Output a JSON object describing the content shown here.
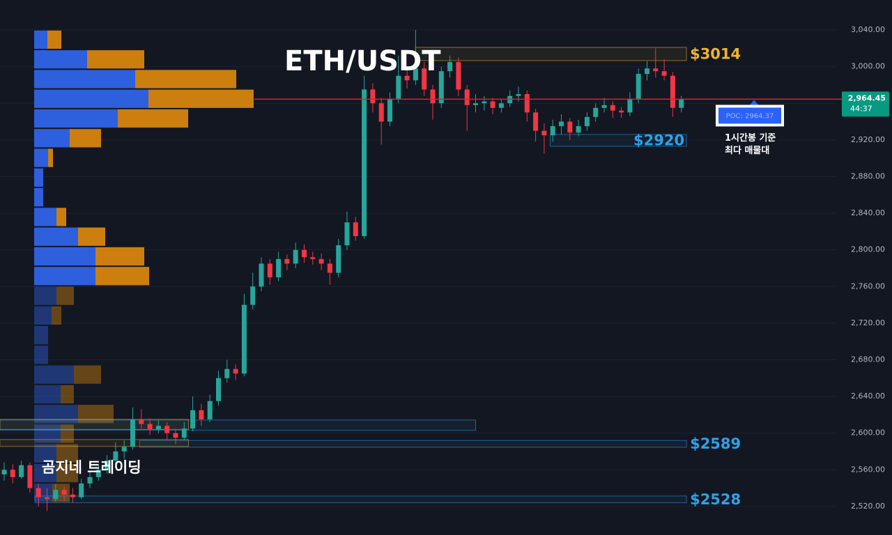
{
  "chart_data": {
    "type": "candlestick",
    "title": "ETH/USDT",
    "watermark": "곰지네 트레이딩",
    "ohlc": {
      "open": [
        2555,
        2560,
        2552,
        2565,
        2540,
        2530,
        2528,
        2538,
        2533,
        2530,
        2545,
        2552,
        2560,
        2570,
        2580,
        2585,
        2615,
        2610,
        2604,
        2608,
        2600,
        2595,
        2605,
        2625,
        2615,
        2635,
        2660,
        2670,
        2665,
        2740,
        2760,
        2785,
        2770,
        2790,
        2785,
        2800,
        2792,
        2790,
        2785,
        2775,
        2805,
        2830,
        2815,
        2975,
        2960,
        2940,
        2965,
        2990,
        2985,
        2998,
        2975,
        2960,
        2995,
        3005,
        2975,
        2958,
        2960,
        2962,
        2955,
        2960,
        2968,
        2970,
        2950,
        2930,
        2925,
        2935,
        2940,
        2928,
        2935,
        2945,
        2955,
        2958,
        2952,
        2950,
        2965,
        2992,
        2998,
        2995,
        2990,
        2955
      ],
      "high": [
        2568,
        2566,
        2570,
        2568,
        2545,
        2540,
        2544,
        2542,
        2540,
        2550,
        2558,
        2566,
        2576,
        2590,
        2592,
        2628,
        2626,
        2616,
        2614,
        2612,
        2604,
        2612,
        2640,
        2632,
        2642,
        2668,
        2680,
        2675,
        2752,
        2775,
        2792,
        2790,
        2798,
        2795,
        2808,
        2806,
        2798,
        2796,
        2790,
        2812,
        2842,
        2836,
        2990,
        2982,
        2966,
        2972,
        3012,
        3000,
        3040,
        3005,
        2980,
        3000,
        3012,
        3010,
        2980,
        2970,
        2968,
        2966,
        2964,
        2974,
        2978,
        2974,
        2954,
        2938,
        2942,
        2948,
        2944,
        2942,
        2950,
        2960,
        2966,
        2962,
        2956,
        2972,
        2998,
        3006,
        3020,
        3008,
        2994,
        2968
      ],
      "low": [
        2548,
        2545,
        2550,
        2535,
        2520,
        2515,
        2525,
        2526,
        2524,
        2528,
        2540,
        2548,
        2556,
        2565,
        2572,
        2582,
        2605,
        2598,
        2600,
        2592,
        2588,
        2592,
        2602,
        2608,
        2612,
        2630,
        2655,
        2658,
        2662,
        2735,
        2755,
        2762,
        2766,
        2778,
        2780,
        2786,
        2784,
        2778,
        2762,
        2770,
        2800,
        2810,
        2812,
        2950,
        2915,
        2935,
        2960,
        2976,
        2980,
        2968,
        2942,
        2955,
        2988,
        2968,
        2930,
        2950,
        2952,
        2948,
        2950,
        2956,
        2962,
        2940,
        2918,
        2905,
        2918,
        2926,
        2920,
        2924,
        2930,
        2940,
        2950,
        2944,
        2944,
        2946,
        2960,
        2985,
        2988,
        2985,
        2945,
        2950
      ],
      "close": [
        2560,
        2552,
        2565,
        2540,
        2530,
        2528,
        2538,
        2533,
        2530,
        2545,
        2552,
        2560,
        2570,
        2580,
        2585,
        2615,
        2610,
        2604,
        2608,
        2600,
        2595,
        2605,
        2625,
        2615,
        2635,
        2660,
        2670,
        2665,
        2740,
        2760,
        2785,
        2770,
        2790,
        2785,
        2800,
        2792,
        2790,
        2785,
        2775,
        2805,
        2830,
        2815,
        2975,
        2960,
        2940,
        2965,
        2990,
        2985,
        2998,
        2975,
        2960,
        2995,
        3005,
        2975,
        2958,
        2960,
        2962,
        2955,
        2960,
        2968,
        2970,
        2950,
        2930,
        2925,
        2935,
        2940,
        2928,
        2935,
        2945,
        2955,
        2958,
        2952,
        2950,
        2965,
        2992,
        2998,
        2995,
        2990,
        2955,
        2964.45
      ]
    },
    "up_color": "#26a69a",
    "down_color": "#f23645",
    "ylim": [
      2488.8,
      3072.7
    ],
    "yticks": [
      {
        "value": 3040,
        "label": "3,040.00"
      },
      {
        "value": 3000,
        "label": "3,000.00"
      },
      {
        "value": 2960,
        "label": "2,960.00"
      },
      {
        "value": 2920,
        "label": "2,920.00"
      },
      {
        "value": 2880,
        "label": "2,880.00"
      },
      {
        "value": 2840,
        "label": "2,840.00"
      },
      {
        "value": 2800,
        "label": "2,800.00"
      },
      {
        "value": 2760,
        "label": "2,760.00"
      },
      {
        "value": 2720,
        "label": "2,720.00"
      },
      {
        "value": 2680,
        "label": "2,680.00"
      },
      {
        "value": 2640,
        "label": "2,640.00"
      },
      {
        "value": 2600,
        "label": "2,600.00"
      },
      {
        "value": 2560,
        "label": "2,560.00"
      },
      {
        "value": 2520,
        "label": "2,520.00"
      }
    ],
    "grid": true,
    "current_price": {
      "value": 2964.45,
      "label": "2,964.45"
    },
    "countdown": "44:37",
    "zones": [
      {
        "low": 3006.6,
        "high": 3021,
        "start": 49,
        "end": 80.6,
        "color": "#f0b429",
        "label": "$3014"
      },
      {
        "low": 2913,
        "high": 2926,
        "start": 64.7,
        "end": 80.6,
        "color": "#2ea1e8",
        "label": "$2920",
        "label_position": "inside"
      },
      {
        "low": 2603,
        "high": 2614.3,
        "start": 0.5,
        "end": 56,
        "color": "#2ea1e8"
      },
      {
        "low": 2604,
        "high": 2615,
        "start": 0.5,
        "end": 22.5,
        "color": "#f0b429"
      },
      {
        "low": 2585.5,
        "high": 2593,
        "start": 0.5,
        "end": 22.5,
        "color": "#f0b429"
      },
      {
        "low": 2584.6,
        "high": 2592,
        "start": 16.8,
        "end": 80.6,
        "color": "#2ea1e8",
        "label": "$2589"
      },
      {
        "low": 2524,
        "high": 2531.4,
        "start": 4.6,
        "end": 80.6,
        "color": "#2ea1e8",
        "label": "$2528"
      }
    ],
    "volume_profile": {
      "levels": [
        3029.4,
        3007.9,
        2986.4,
        2964.9,
        2943.4,
        2921.9,
        2900.4,
        2878.9,
        2857.4,
        2835.9,
        2814.4,
        2792.9,
        2771.4,
        2749.9,
        2728.4,
        2706.9,
        2685.4,
        2663.9,
        2642.4,
        2620.9,
        2599.4,
        2577.9,
        2556.4,
        2534.9
      ],
      "buy": [
        19,
        76,
        145,
        164,
        120,
        51,
        20,
        13,
        13,
        32,
        63,
        88,
        88,
        32,
        25,
        20,
        20,
        57,
        38,
        63,
        38,
        32,
        32,
        26
      ],
      "sell": [
        20,
        82,
        145,
        151,
        101,
        45,
        7,
        0,
        0,
        14,
        39,
        70,
        77,
        25,
        14,
        0,
        0,
        39,
        19,
        51,
        19,
        31,
        31,
        25
      ],
      "buy_color": "#2e5fdc",
      "sell_color": "#cc7f0e",
      "value_area": [
        2760,
        3040
      ],
      "poc": {
        "value": 2964.37,
        "label": "POC: 2964.37"
      },
      "note": [
        "1시간봉 기준",
        "최다 매물대"
      ]
    }
  }
}
